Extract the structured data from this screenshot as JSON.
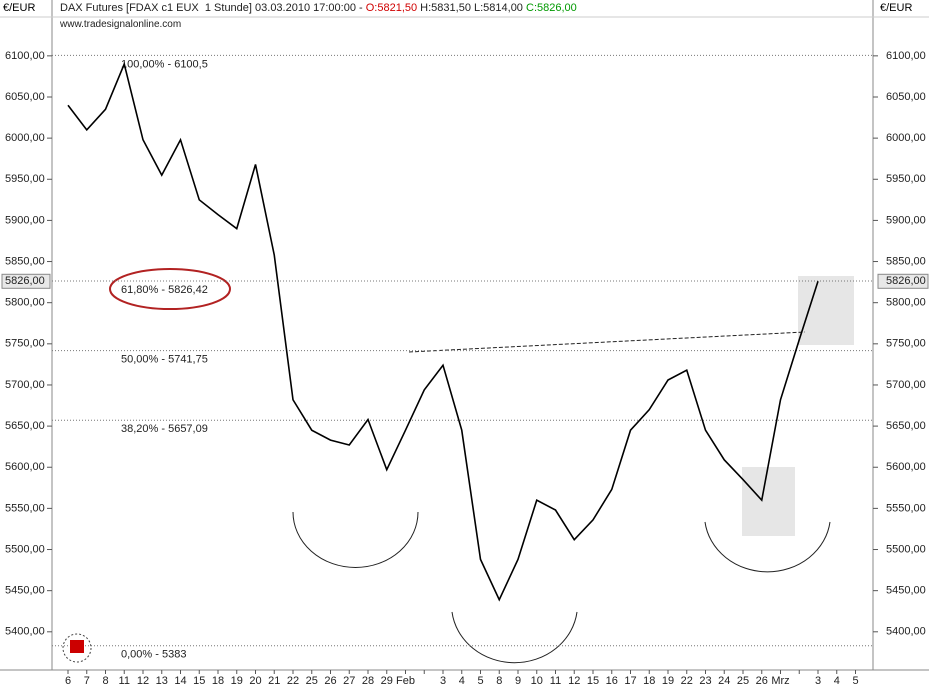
{
  "header": {
    "currency": "€/EUR",
    "instrument": "DAX Futures [FDAX c1 EUX  1 Stunde] 03.03.2010 17:00:00 -",
    "open": "O:5821,50",
    "high_low": "H:5831,50 L:5814,00",
    "close": "C:5826,00",
    "source": "www.tradesignalonline.com"
  },
  "chart_data": {
    "type": "line",
    "categories": [
      "6",
      "7",
      "8",
      "11",
      "12",
      "13",
      "14",
      "15",
      "18",
      "19",
      "20",
      "21",
      "22",
      "25",
      "26",
      "27",
      "28",
      "29",
      "Feb",
      null,
      "3",
      "4",
      "5",
      "8",
      "9",
      "10",
      "11",
      "12",
      "15",
      "16",
      "17",
      "18",
      "19",
      "22",
      "23",
      "24",
      "25",
      "26",
      "Mrz",
      null,
      "3",
      "4",
      "5"
    ],
    "series": [
      {
        "color": "#000000",
        "values": [
          6040,
          6010,
          6035,
          6090,
          5998,
          5955,
          5998,
          5925,
          5907,
          5890,
          5968,
          5858,
          5682,
          5645,
          5633,
          5627,
          5658,
          5597,
          5645,
          5694,
          5724,
          5645,
          5488,
          5439,
          5488,
          5560,
          5548,
          5512,
          5536,
          5573,
          5645,
          5670,
          5706,
          5718,
          5645,
          5609,
          5585,
          5560,
          5682,
          5755,
          5826,
          null,
          null
        ]
      }
    ],
    "ylim": [
      5356,
      6146
    ],
    "yticks": [
      {
        "value": 5400,
        "label": "5400,00"
      },
      {
        "value": 5450,
        "label": "5450,00"
      },
      {
        "value": 5500,
        "label": "5500,00"
      },
      {
        "value": 5550,
        "label": "5550,00"
      },
      {
        "value": 5600,
        "label": "5600,00"
      },
      {
        "value": 5650,
        "label": "5650,00"
      },
      {
        "value": 5700,
        "label": "5700,00"
      },
      {
        "value": 5750,
        "label": "5750,00"
      },
      {
        "value": 5800,
        "label": "5800,00"
      },
      {
        "value": 5850,
        "label": "5850,00"
      },
      {
        "value": 5900,
        "label": "5900,00"
      },
      {
        "value": 5950,
        "label": "5950,00"
      },
      {
        "value": 6000,
        "label": "6000,00"
      },
      {
        "value": 6050,
        "label": "6050,00"
      },
      {
        "value": 6100,
        "label": "6100,00"
      }
    ],
    "last_price": {
      "value": 5826,
      "label": "5826,00"
    },
    "fib_levels": [
      {
        "value": 6100.5,
        "label": "100,00% - 6100,5"
      },
      {
        "value": 5826.42,
        "label": "61,80% - 5826,42"
      },
      {
        "value": 5741.75,
        "label": "50,00% - 5741,75"
      },
      {
        "value": 5657.09,
        "label": "38,20% - 5657,09"
      },
      {
        "value": 5383,
        "label": "0,00% - 5383"
      }
    ]
  }
}
